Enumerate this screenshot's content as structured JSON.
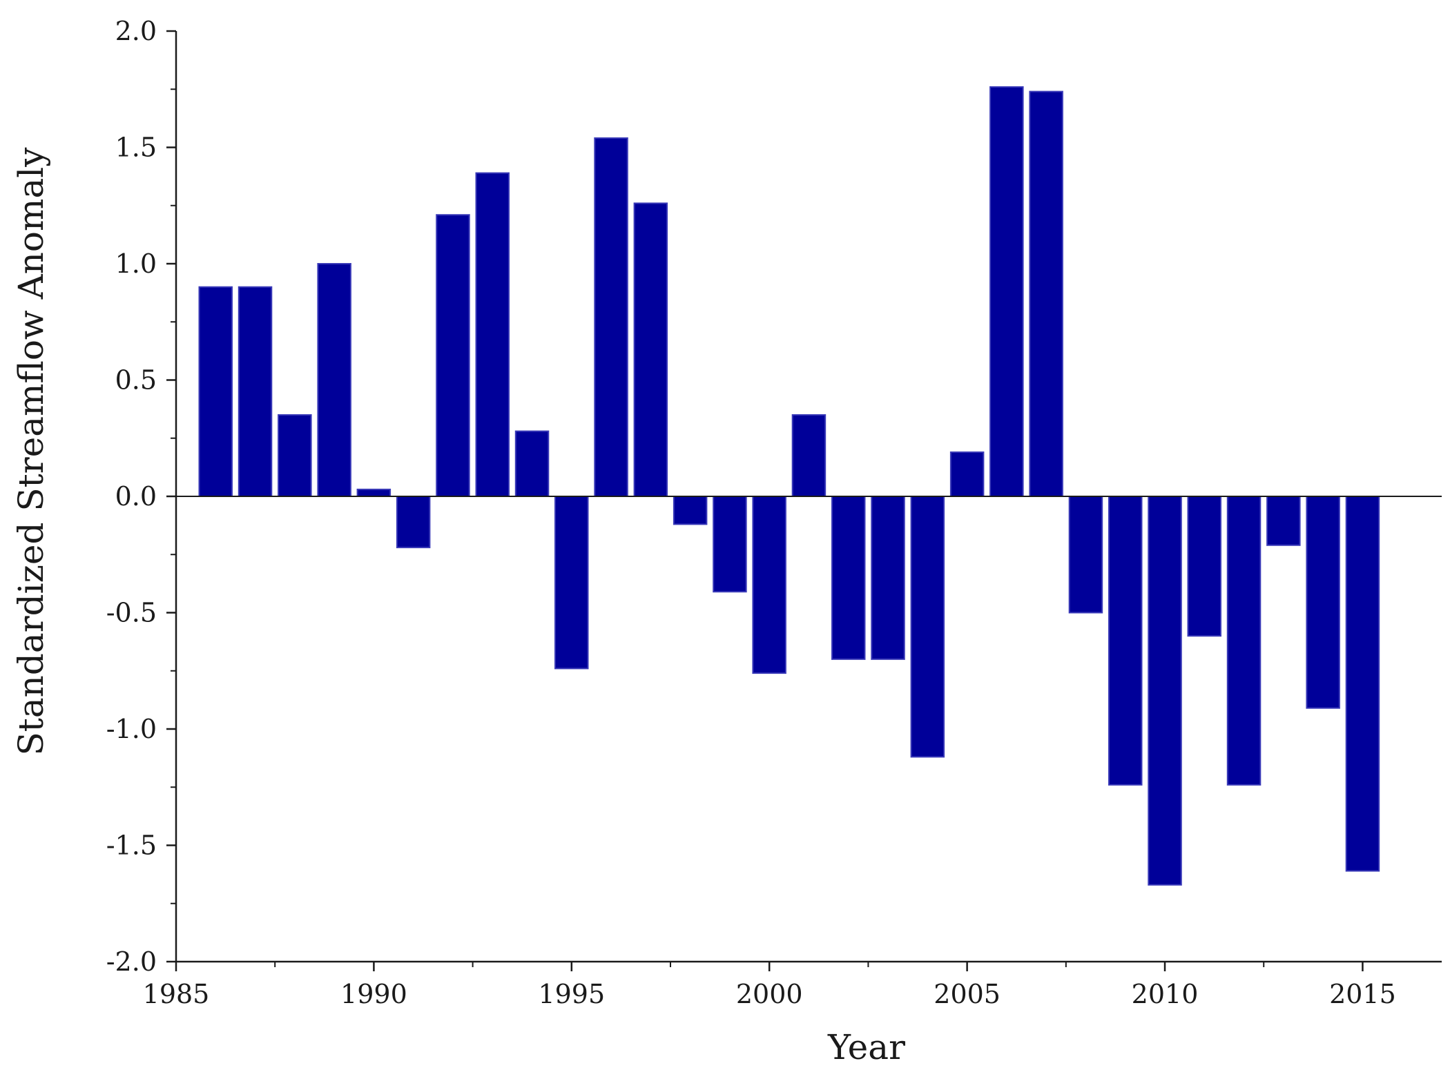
{
  "chart_data": {
    "type": "bar",
    "xlabel": "Year",
    "ylabel": "Standardized Streamflow Anomaly",
    "xlim": [
      1985,
      2017
    ],
    "ylim": [
      -2.0,
      2.0
    ],
    "x_ticks": [
      1985,
      1990,
      1995,
      2000,
      2005,
      2010,
      2015
    ],
    "x_tick_labels": [
      "1985",
      "1990",
      "1995",
      "2000",
      "2005",
      "2010",
      "2015"
    ],
    "y_ticks": [
      2.0,
      1.5,
      1.0,
      0.5,
      0.0,
      -0.5,
      -1.0,
      -1.5,
      -2.0
    ],
    "y_tick_labels": [
      "2.0",
      "1.5",
      "1.0",
      "0.5",
      "0.0",
      "-0.5",
      "-1.0",
      "-1.5",
      "-2.0"
    ],
    "bar_color": "#000099",
    "grid": false,
    "zero_line": true,
    "x": [
      1986,
      1987,
      1988,
      1989,
      1990,
      1991,
      1992,
      1993,
      1994,
      1995,
      1996,
      1997,
      1998,
      1999,
      2000,
      2001,
      2002,
      2003,
      2004,
      2005,
      2006,
      2007,
      2008,
      2009,
      2010,
      2011,
      2012,
      2013,
      2014,
      2015
    ],
    "values": [
      0.9,
      0.9,
      0.35,
      1.0,
      0.03,
      -0.22,
      1.21,
      1.39,
      0.28,
      -0.74,
      1.54,
      1.26,
      -0.12,
      -0.41,
      -0.76,
      0.35,
      -0.7,
      -0.7,
      -1.12,
      0.19,
      1.76,
      1.74,
      -0.5,
      -1.24,
      -1.67,
      -0.6,
      -1.24,
      -0.21,
      -0.91,
      -1.61
    ]
  }
}
